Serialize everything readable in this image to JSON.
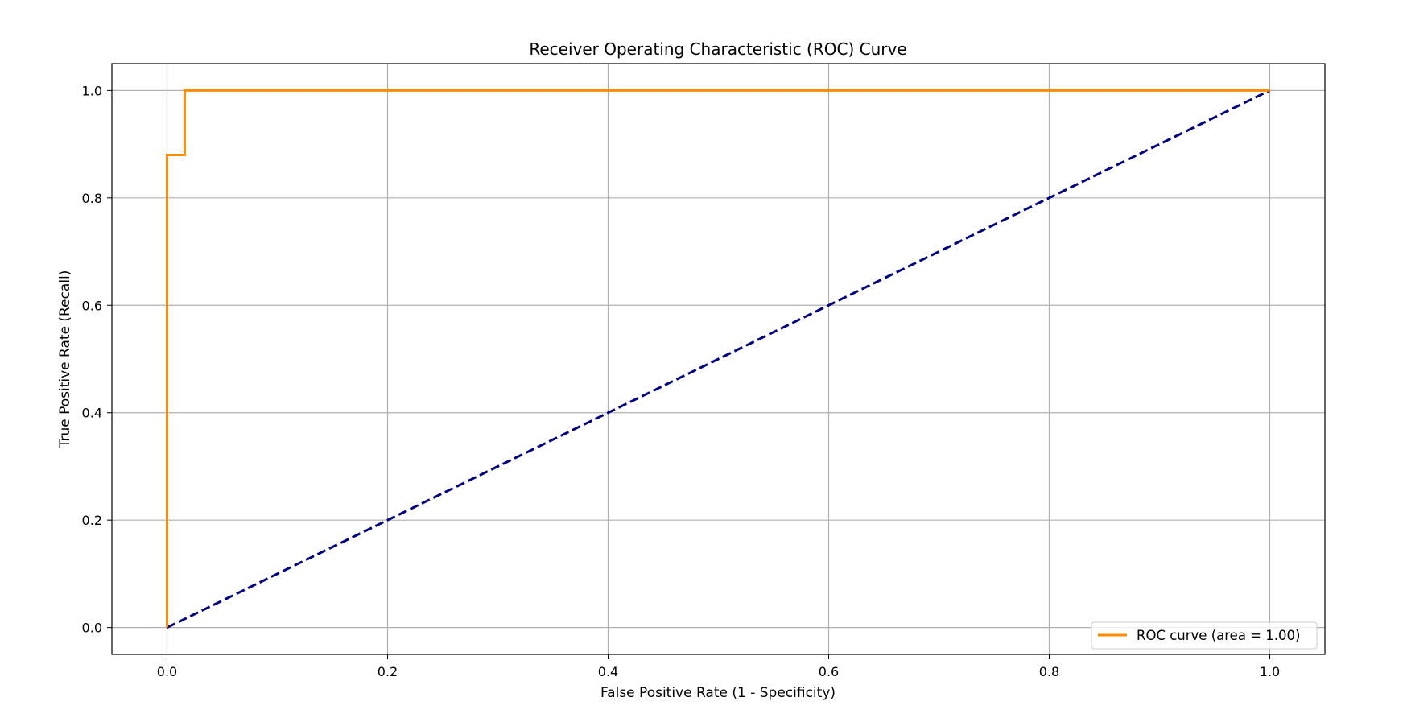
{
  "chart_data": {
    "type": "line",
    "title": "Receiver Operating Characteristic (ROC) Curve",
    "xlabel": "False Positive Rate (1 - Specificity)",
    "ylabel": "True Positive Rate (Recall)",
    "xlim": [
      -0.05,
      1.05
    ],
    "ylim": [
      -0.05,
      1.05
    ],
    "xticks": [
      0.0,
      0.2,
      0.4,
      0.6,
      0.8,
      1.0
    ],
    "yticks": [
      0.0,
      0.2,
      0.4,
      0.6,
      0.8,
      1.0
    ],
    "xtick_labels": [
      "0.0",
      "0.2",
      "0.4",
      "0.6",
      "0.8",
      "1.0"
    ],
    "ytick_labels": [
      "0.0",
      "0.2",
      "0.4",
      "0.6",
      "0.8",
      "1.0"
    ],
    "grid": true,
    "legend_position": "lower right",
    "series": [
      {
        "name": "ROC curve (area = 1.00)",
        "color": "#ff8c00",
        "style": "solid",
        "step": true,
        "x": [
          0.0,
          0.0,
          0.016,
          0.016,
          1.0
        ],
        "y": [
          0.0,
          0.88,
          0.88,
          1.0,
          1.0
        ]
      },
      {
        "color": "#000080",
        "style": "dashed",
        "x": [
          0.0,
          1.0
        ],
        "y": [
          0.0,
          1.0
        ]
      }
    ]
  }
}
